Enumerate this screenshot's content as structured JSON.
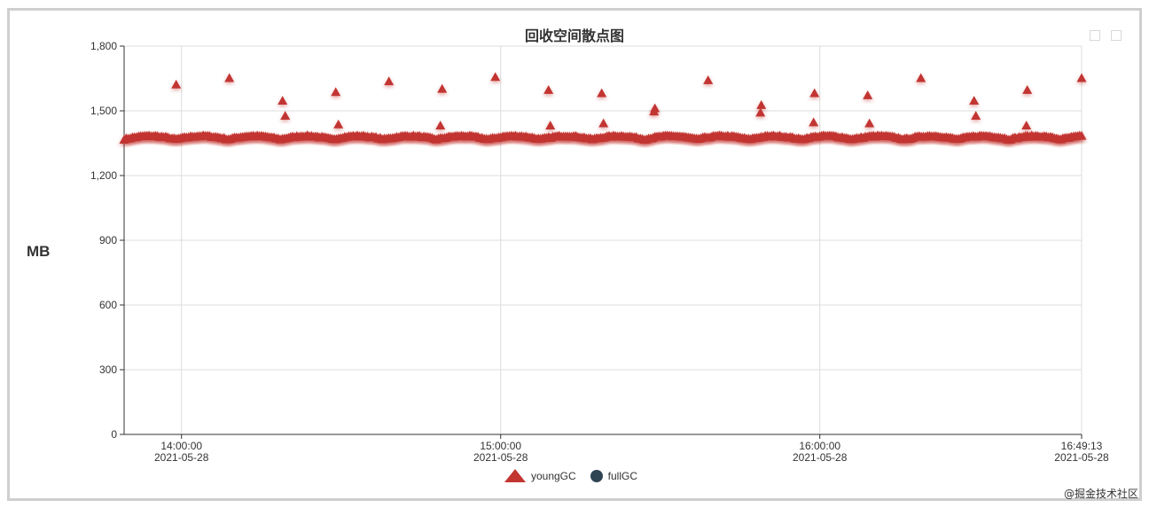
{
  "chart_data": {
    "type": "scatter",
    "title": "回收空间散点图",
    "ylabel": "MB",
    "ylim": [
      0,
      1800
    ],
    "yticks": [
      "0",
      "300",
      "600",
      "900",
      "1,200",
      "1,500",
      "1,800"
    ],
    "ytick_values": [
      0,
      300,
      600,
      900,
      1200,
      1500,
      1800
    ],
    "x_axis": {
      "type": "time",
      "range": [
        "2021-05-28 13:49:13",
        "2021-05-28 16:49:13"
      ],
      "ticks": [
        {
          "time": "2021-05-28 14:00:00",
          "label_time": "14:00:00",
          "label_date": "2021-05-28"
        },
        {
          "time": "2021-05-28 15:00:00",
          "label_time": "15:00:00",
          "label_date": "2021-05-28"
        },
        {
          "time": "2021-05-28 16:00:00",
          "label_time": "16:00:00",
          "label_date": "2021-05-28"
        },
        {
          "time": "2021-05-28 16:49:13",
          "label_time": "16:49:13",
          "label_date": "2021-05-28"
        }
      ]
    },
    "grid": true,
    "legend_position": "bottom-center",
    "series": [
      {
        "name": "youngGC",
        "symbol": "triangle",
        "color": "#c23531",
        "dense_band": {
          "from": "2021-05-28 13:49:13",
          "to": "2021-05-28 16:49:13",
          "min": 1355,
          "max": 1385
        },
        "points": [
          {
            "x": "2021-05-28 13:59:00",
            "y": 1620
          },
          {
            "x": "2021-05-28 14:09:00",
            "y": 1650
          },
          {
            "x": "2021-05-28 14:19:00",
            "y": 1545
          },
          {
            "x": "2021-05-28 14:19:30",
            "y": 1475
          },
          {
            "x": "2021-05-28 14:29:00",
            "y": 1585
          },
          {
            "x": "2021-05-28 14:29:30",
            "y": 1435
          },
          {
            "x": "2021-05-28 14:39:00",
            "y": 1635
          },
          {
            "x": "2021-05-28 14:49:00",
            "y": 1600
          },
          {
            "x": "2021-05-28 14:48:40",
            "y": 1430
          },
          {
            "x": "2021-05-28 14:59:00",
            "y": 1655
          },
          {
            "x": "2021-05-28 15:09:00",
            "y": 1595
          },
          {
            "x": "2021-05-28 15:09:20",
            "y": 1430
          },
          {
            "x": "2021-05-28 15:19:00",
            "y": 1580
          },
          {
            "x": "2021-05-28 15:19:20",
            "y": 1440
          },
          {
            "x": "2021-05-28 15:29:00",
            "y": 1510
          },
          {
            "x": "2021-05-28 15:28:50",
            "y": 1495
          },
          {
            "x": "2021-05-28 15:39:00",
            "y": 1640
          },
          {
            "x": "2021-05-28 15:49:00",
            "y": 1525
          },
          {
            "x": "2021-05-28 15:48:50",
            "y": 1490
          },
          {
            "x": "2021-05-28 15:59:00",
            "y": 1580
          },
          {
            "x": "2021-05-28 15:58:50",
            "y": 1445
          },
          {
            "x": "2021-05-28 16:09:00",
            "y": 1570
          },
          {
            "x": "2021-05-28 16:09:20",
            "y": 1440
          },
          {
            "x": "2021-05-28 16:19:00",
            "y": 1650
          },
          {
            "x": "2021-05-28 16:29:00",
            "y": 1545
          },
          {
            "x": "2021-05-28 16:29:20",
            "y": 1475
          },
          {
            "x": "2021-05-28 16:39:00",
            "y": 1595
          },
          {
            "x": "2021-05-28 16:38:50",
            "y": 1430
          },
          {
            "x": "2021-05-28 16:49:13",
            "y": 1650
          }
        ]
      },
      {
        "name": "fullGC",
        "symbol": "circle",
        "color": "#2f4554",
        "points": []
      }
    ]
  },
  "watermark": "@掘金技术社区"
}
